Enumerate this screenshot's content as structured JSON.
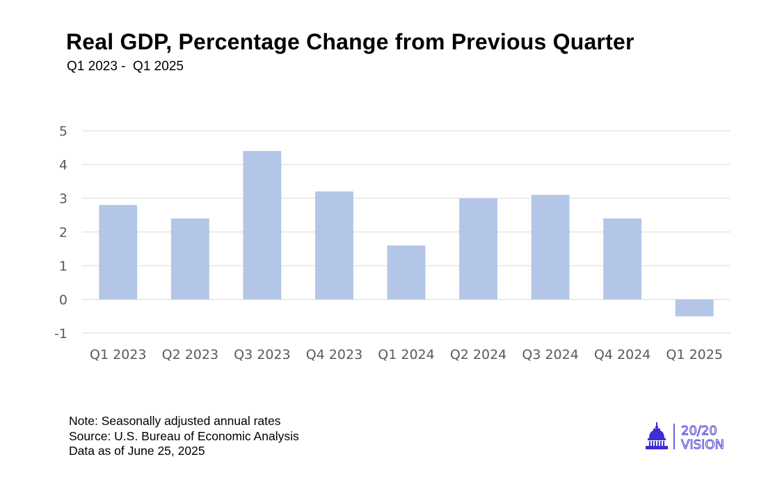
{
  "title": "Real GDP, Percentage Change from Previous Quarter",
  "subtitle": "Q1 2023 -  Q1 2025",
  "notes": [
    "Note: Seasonally adjusted annual rates",
    "Source: U.S. Bureau of Economic Analysis",
    "Data as of June 25, 2025"
  ],
  "logo": {
    "line1": "20/20",
    "line2": "VISION",
    "icon": "capitol-dome-icon",
    "color": "#3d2fd6"
  },
  "chart_data": {
    "type": "bar",
    "categories": [
      "Q1 2023",
      "Q2 2023",
      "Q3 2023",
      "Q4 2023",
      "Q1 2024",
      "Q2 2024",
      "Q3 2024",
      "Q4 2024",
      "Q1 2025"
    ],
    "values": [
      2.8,
      2.4,
      4.4,
      3.2,
      1.6,
      3.0,
      3.1,
      2.4,
      -0.5
    ],
    "ylim": [
      -1,
      5
    ],
    "yticks": [
      "-1",
      "0",
      "1",
      "2",
      "3",
      "4",
      "5"
    ],
    "grid": true,
    "bar_color": "#b4c6e7",
    "grid_color": "#d9d9d9"
  }
}
